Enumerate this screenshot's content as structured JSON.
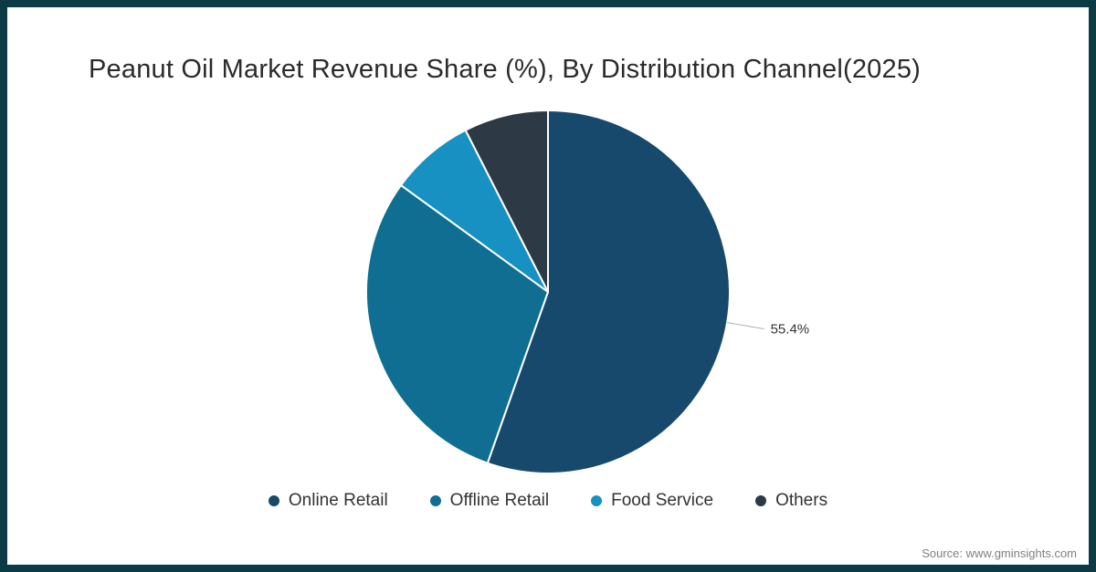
{
  "chart": {
    "title": "Peanut Oil Market Revenue Share (%), By Distribution Channel(2025)"
  },
  "chart_data": {
    "type": "pie",
    "title": "Peanut Oil Market Revenue Share (%), By Distribution Channel(2025)",
    "categories": [
      "Online Retail",
      "Offline Retail",
      "Food Service",
      "Others"
    ],
    "values": [
      55.4,
      29.6,
      7.5,
      7.5
    ],
    "unit": "%",
    "labels": [
      "55.4%",
      "",
      "",
      ""
    ],
    "colors": [
      "#17496d",
      "#0f6e91",
      "#1791c1",
      "#2d3a46"
    ],
    "start_angle_deg": 0,
    "direction": "clockwise",
    "legend_position": "bottom",
    "slice_border_color": "#ffffff",
    "leader_line_color": "#b0b0b0",
    "label_text_color": "#333333"
  },
  "footer": {
    "source": "Source: www.gminsights.com"
  }
}
